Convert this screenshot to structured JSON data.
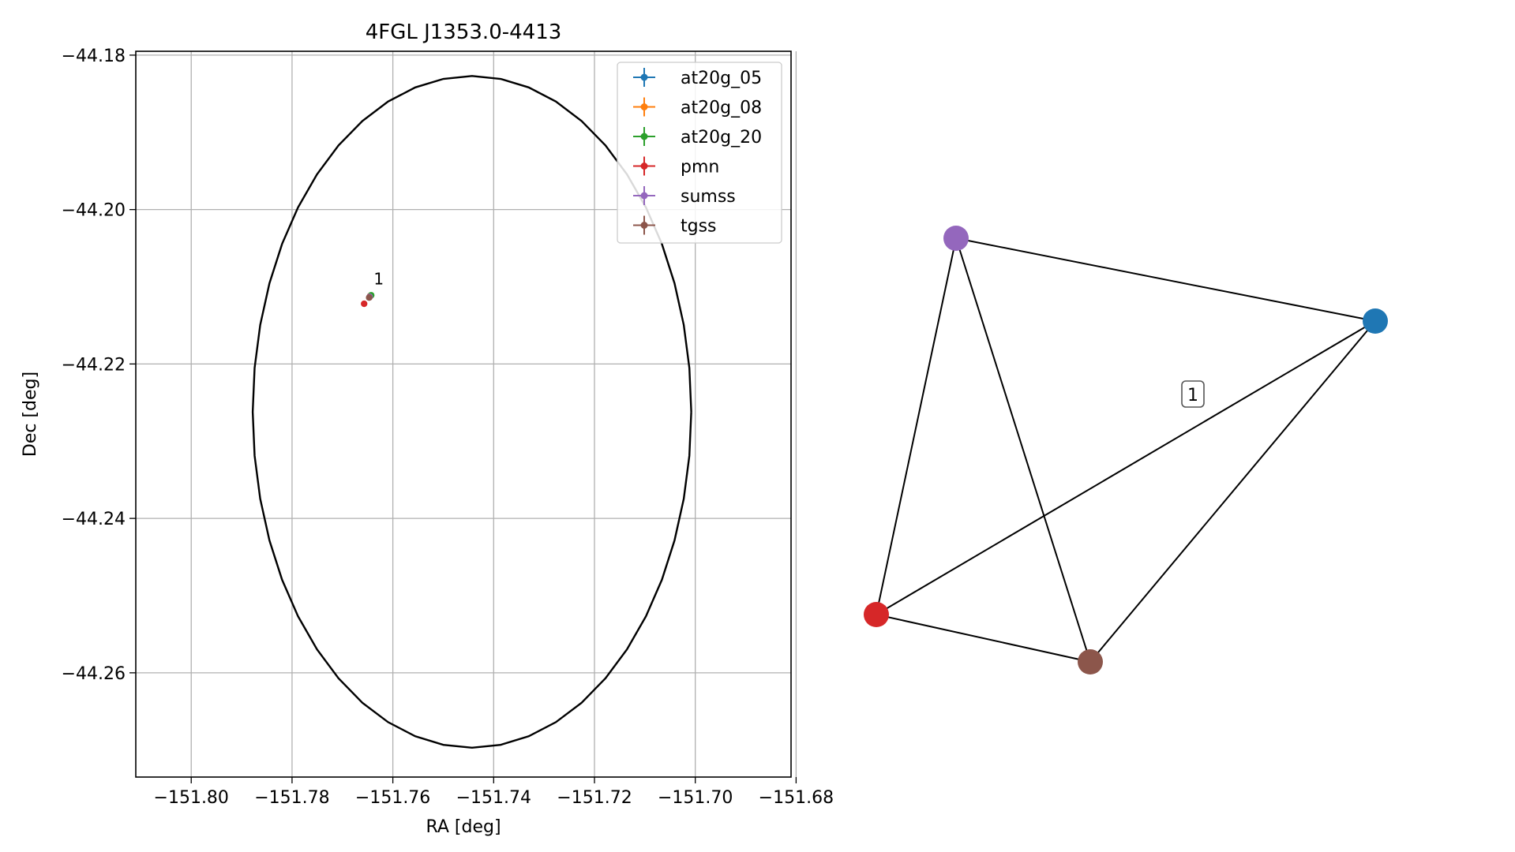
{
  "chart_data": [
    {
      "type": "scatter",
      "title": "4FGL J1353.0-4413",
      "xlabel": "RA [deg]",
      "ylabel": "Dec [deg]",
      "xlim": [
        -151.811,
        -151.681
      ],
      "ylim": [
        -44.2735,
        -44.1795
      ],
      "xticks": [
        -151.8,
        -151.78,
        -151.76,
        -151.74,
        -151.72,
        -151.7,
        -151.68
      ],
      "xtick_labels": [
        "−151.80",
        "−151.78",
        "−151.76",
        "−151.74",
        "−151.72",
        "−151.70",
        "−151.68"
      ],
      "yticks": [
        -44.18,
        -44.2,
        -44.22,
        -44.24,
        -44.26
      ],
      "ytick_labels": [
        "−44.18",
        "−44.20",
        "−44.22",
        "−44.24",
        "−44.26"
      ],
      "grid": true,
      "legend_placement": "top-right",
      "circle": {
        "center": [
          -151.7443,
          -44.2262
        ],
        "radius_deg": 0.0435
      },
      "series": [
        {
          "name": "at20g_05",
          "color": "#1f77b4",
          "x": [
            -151.7645
          ],
          "y": [
            -44.2112
          ]
        },
        {
          "name": "at20g_08",
          "color": "#ff7f0e",
          "x": [
            -151.7645
          ],
          "y": [
            -44.2112
          ]
        },
        {
          "name": "at20g_20",
          "color": "#2ca02c",
          "x": [
            -151.7643
          ],
          "y": [
            -44.2111
          ]
        },
        {
          "name": "pmn",
          "color": "#d62728",
          "x": [
            -151.7657
          ],
          "y": [
            -44.2122
          ]
        },
        {
          "name": "sumss",
          "color": "#9467bd",
          "x": [
            -151.7646
          ],
          "y": [
            -44.2113
          ]
        },
        {
          "name": "tgss",
          "color": "#8c564b",
          "x": [
            -151.7647
          ],
          "y": [
            -44.2114
          ]
        }
      ],
      "annotations": [
        {
          "text": "1",
          "x": -151.7638,
          "y": -44.2097
        }
      ]
    },
    {
      "type": "network",
      "nodes": [
        {
          "id": "sumss",
          "color": "#9467bd"
        },
        {
          "id": "at20g",
          "color": "#1f77b4"
        },
        {
          "id": "pmn",
          "color": "#d62728"
        },
        {
          "id": "tgss",
          "color": "#8c564b"
        }
      ],
      "edges": [
        [
          "sumss",
          "at20g"
        ],
        [
          "sumss",
          "pmn"
        ],
        [
          "sumss",
          "tgss"
        ],
        [
          "at20g",
          "pmn"
        ],
        [
          "at20g",
          "tgss"
        ],
        [
          "pmn",
          "tgss"
        ]
      ],
      "cluster_label": "1"
    }
  ]
}
